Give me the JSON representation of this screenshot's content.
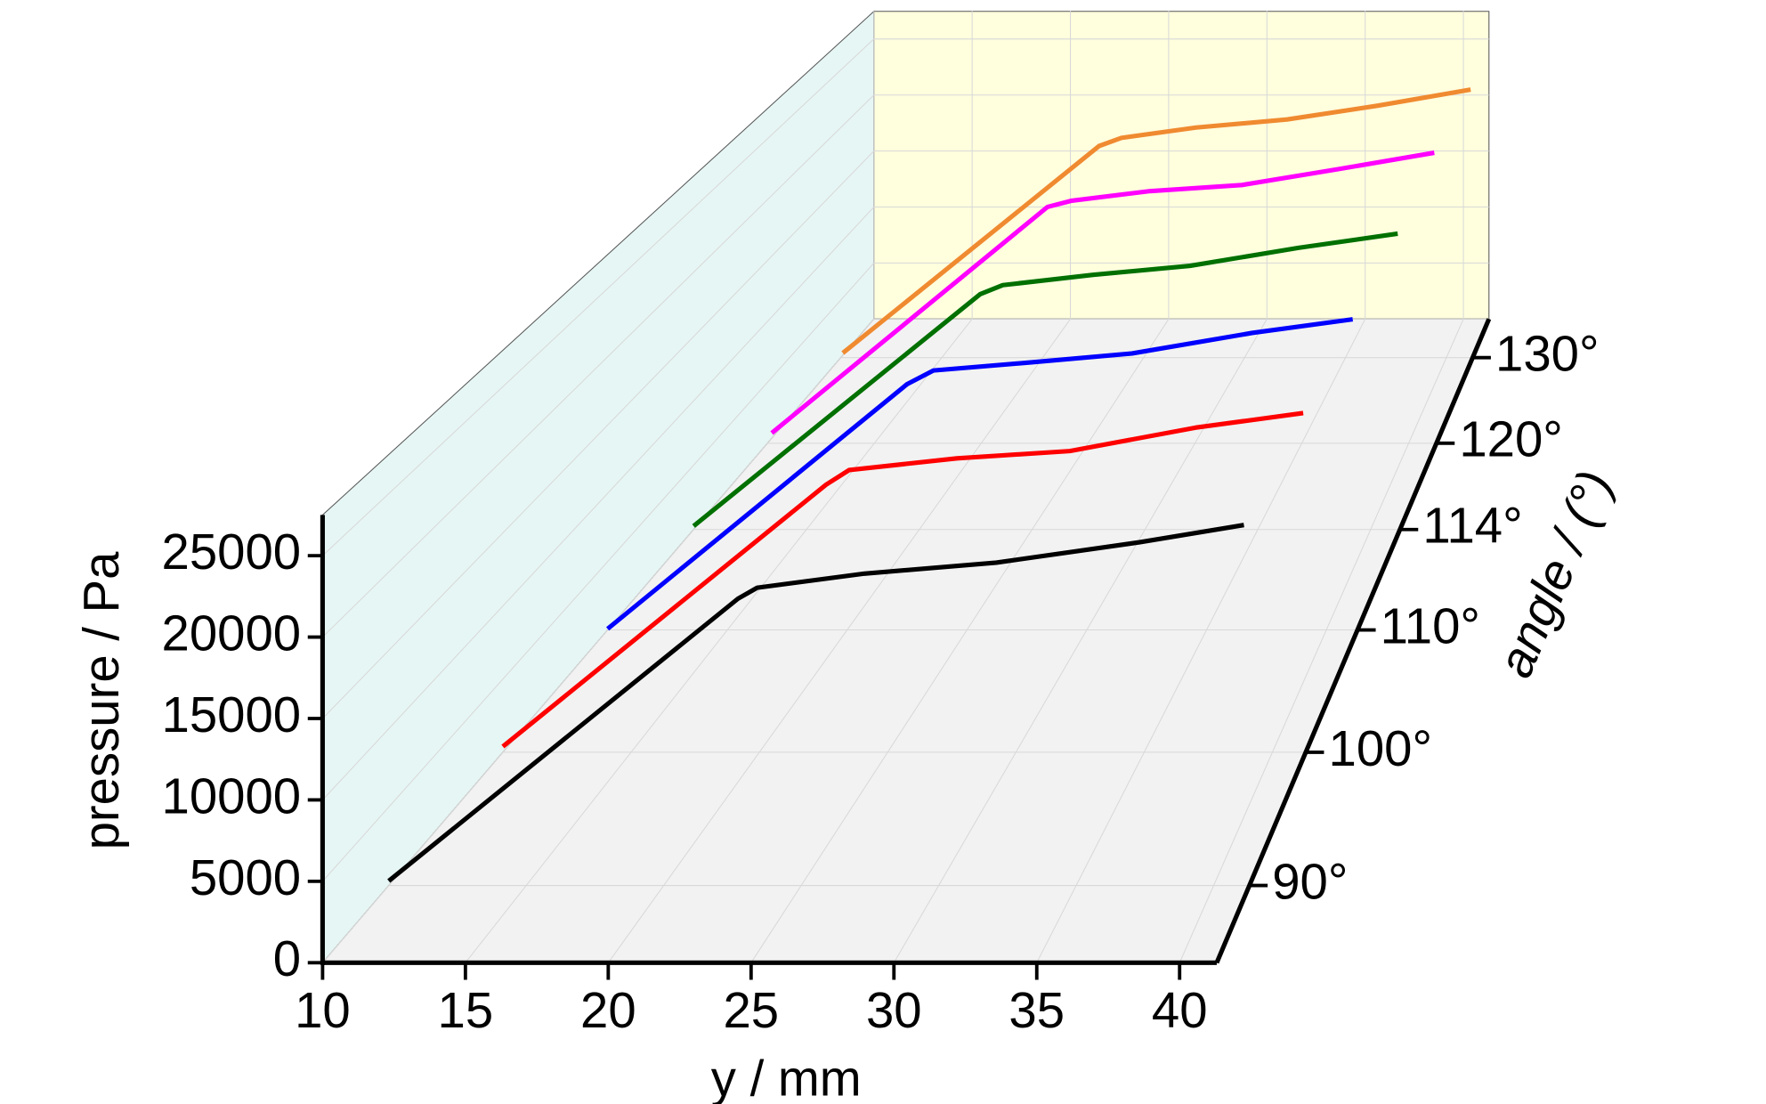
{
  "chart_data": {
    "type": "line3d",
    "x_label": "y / mm",
    "y_label": "pressure / Pa",
    "z_label": "angle / (°)",
    "xlim": [
      10,
      41.3
    ],
    "xticks": [
      10,
      15,
      20,
      25,
      30,
      35,
      40
    ],
    "ylim": [
      0,
      27500
    ],
    "yticks": [
      0,
      5000,
      10000,
      15000,
      20000,
      25000
    ],
    "zticks": [
      {
        "value": 90,
        "label": "90°"
      },
      {
        "value": 100,
        "label": "100°"
      },
      {
        "value": 110,
        "label": "110°"
      },
      {
        "value": 114,
        "label": "114°"
      },
      {
        "value": 120,
        "label": "120°"
      },
      {
        "value": 130,
        "label": "130°"
      }
    ],
    "grid": true,
    "series": [
      {
        "color": "#000000",
        "x": [
          10,
          22.7,
          23.4,
          27.3,
          32.1,
          37.3,
          41.1
        ],
        "values": [
          290,
          18300,
          19000,
          19900,
          20600,
          21900,
          23000
        ]
      },
      {
        "color": "#ff0000",
        "x": [
          10,
          22.6,
          23.5,
          27.7,
          32.1,
          37.0,
          41.2
        ],
        "values": [
          390,
          18300,
          19300,
          20100,
          20600,
          22200,
          23200
        ]
      },
      {
        "color": "#0000ff",
        "x": [
          10,
          22.5,
          23.6,
          27.7,
          31.9,
          36.9,
          41.1
        ],
        "values": [
          80,
          18000,
          19000,
          19600,
          20250,
          21750,
          22750
        ]
      },
      {
        "color": "#007000",
        "x": [
          10,
          22.7,
          23.7,
          27.7,
          32.0,
          36.8,
          41.2
        ],
        "values": [
          270,
          18300,
          19000,
          19800,
          20500,
          21900,
          23000
        ]
      },
      {
        "color": "#ff00ff",
        "x": [
          10.2,
          23.1,
          24.2,
          27.9,
          32.2,
          36.7,
          41.2
        ],
        "values": [
          840,
          19400,
          19900,
          20700,
          21200,
          22500,
          23850
        ]
      },
      {
        "color": "#f08a30",
        "x": [
          10.1,
          22.8,
          23.9,
          27.6,
          32.1,
          36.6,
          41.2
        ],
        "values": [
          400,
          18400,
          19100,
          20000,
          20700,
          21900,
          23300
        ]
      }
    ]
  }
}
